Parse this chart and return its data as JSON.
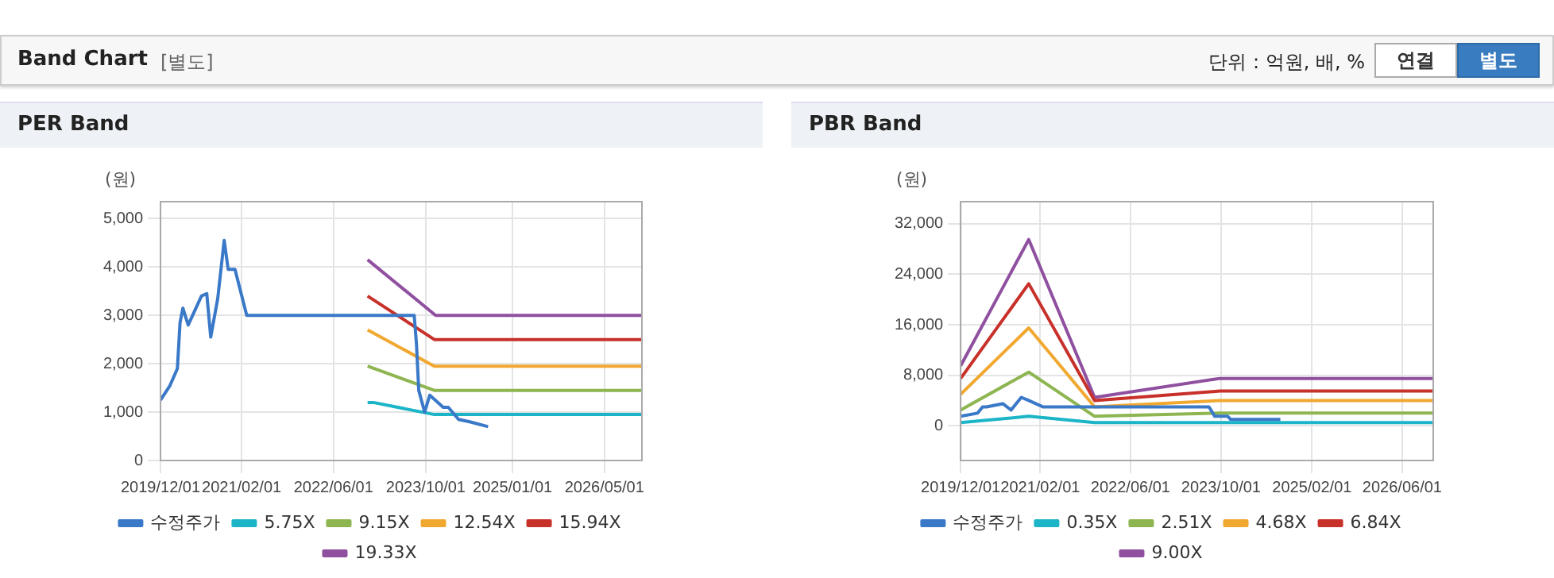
{
  "chart_data": [
    {
      "type": "other",
      "title": "Band Chart",
      "annotations": [
        "[별도]",
        "단위 : 억원, 배, %",
        "연결",
        "별도"
      ]
    },
    {
      "type": "line",
      "title": "PER Band",
      "ylabel": "(원)",
      "legend": "bottom",
      "grid": true,
      "marker": "none",
      "line_style": "solid",
      "xlim": [
        "2019-12-01",
        "2026-11-15"
      ],
      "ylim": [
        0,
        5350
      ],
      "yticks": [
        0,
        {
          "value": 1000,
          "label": "1,000"
        },
        {
          "value": 2000,
          "label": "2,000"
        },
        {
          "value": 3000,
          "label": "3,000"
        },
        {
          "value": 4000,
          "label": "4,000"
        },
        {
          "value": 5000,
          "label": "5,000"
        }
      ],
      "xticks": [
        {
          "value": "2019-12-01",
          "label": "2019/12/01"
        },
        {
          "value": "2021-02-01",
          "label": "2021/02/01"
        },
        {
          "value": "2022-06-01",
          "label": "2022/06/01"
        },
        {
          "value": "2023-10-01",
          "label": "2023/10/01"
        },
        {
          "value": "2025-01-01",
          "label": "2025/01/01"
        },
        {
          "value": "2026-05-01",
          "label": "2026/05/01"
        }
      ],
      "series": [
        {
          "name": "수정주가",
          "color": "#3a78c8",
          "x": [
            "2019-12-01",
            "2020-01-20",
            "2020-02-28",
            "2020-03-13",
            "2020-03-28",
            "2020-04-25",
            "2020-07-04",
            "2020-08-01",
            "2020-08-22",
            "2020-09-28",
            "2020-11-01",
            "2020-11-22",
            "2020-12-28",
            "2021-02-28",
            "2023-08-01",
            "2023-08-13",
            "2023-08-25",
            "2023-09-25",
            "2023-10-22",
            "2024-01-01",
            "2024-01-28",
            "2024-03-22",
            "2024-05-20",
            "2024-08-25"
          ],
          "values": [
            1250,
            1550,
            1900,
            2850,
            3150,
            2800,
            3400,
            3450,
            2550,
            3350,
            4550,
            3950,
            3950,
            3000,
            3000,
            2400,
            1450,
            1000,
            1350,
            1100,
            1100,
            850,
            800,
            700
          ]
        },
        {
          "name": "5.75X",
          "color": "#1cb5c8",
          "x": [
            "2022-11-28",
            "2022-12-28",
            "2023-11-15",
            "2026-11-15"
          ],
          "values": [
            1200,
            1200,
            950,
            950
          ]
        },
        {
          "name": "9.15X",
          "color": "#8db550",
          "x": [
            "2022-11-28",
            "2023-11-15",
            "2026-11-15"
          ],
          "values": [
            1950,
            1450,
            1450
          ]
        },
        {
          "name": "12.54X",
          "color": "#f0a830",
          "x": [
            "2022-11-28",
            "2023-11-15",
            "2026-11-15"
          ],
          "values": [
            2700,
            1950,
            1950
          ]
        },
        {
          "name": "15.94X",
          "color": "#c8302a",
          "x": [
            "2022-11-28",
            "2023-11-15",
            "2026-11-15"
          ],
          "values": [
            3400,
            2500,
            2500
          ]
        },
        {
          "name": "19.33X",
          "color": "#9050a0",
          "x": [
            "2022-11-28",
            "2023-11-22",
            "2026-11-15"
          ],
          "values": [
            4150,
            3000,
            3000
          ]
        }
      ]
    },
    {
      "type": "line",
      "title": "PBR Band",
      "ylabel": "(원)",
      "legend": "bottom",
      "grid": true,
      "marker": "none",
      "line_style": "solid",
      "xlim": [
        "2019-12-01",
        "2026-11-15"
      ],
      "ylim": [
        -5500,
        35500
      ],
      "yticks": [
        0,
        {
          "value": 8000,
          "label": "8,000"
        },
        {
          "value": 16000,
          "label": "16,000"
        },
        {
          "value": 24000,
          "label": "24,000"
        },
        {
          "value": 32000,
          "label": "32,000"
        }
      ],
      "xticks": [
        {
          "value": "2019-12-01",
          "label": "2019/12/01"
        },
        {
          "value": "2021-02-01",
          "label": "2021/02/01"
        },
        {
          "value": "2022-06-01",
          "label": "2022/06/01"
        },
        {
          "value": "2023-10-01",
          "label": "2023/10/01"
        },
        {
          "value": "2025-02-01",
          "label": "2025/02/01"
        },
        {
          "value": "2026-06-01",
          "label": "2026/06/01"
        }
      ],
      "series": [
        {
          "name": "수정주가",
          "color": "#3a78c8",
          "x": [
            "2019-12-01",
            "2020-03-01",
            "2020-03-28",
            "2020-04-18",
            "2020-07-15",
            "2020-08-28",
            "2020-10-22",
            "2020-12-01",
            "2021-02-15",
            "2023-07-28",
            "2023-08-28",
            "2023-11-06",
            "2023-11-22",
            "2024-04-10",
            "2024-05-10",
            "2024-08-15"
          ],
          "values": [
            1500,
            2000,
            3000,
            3000,
            3500,
            2500,
            4500,
            4000,
            3000,
            3000,
            1500,
            1500,
            1000,
            1000,
            1000,
            1000
          ]
        },
        {
          "name": "0.35X",
          "color": "#1cb5c8",
          "x": [
            "2019-12-01",
            "2020-12-01",
            "2021-11-20",
            "2026-11-15"
          ],
          "values": [
            500,
            1500,
            500,
            500
          ]
        },
        {
          "name": "2.51X",
          "color": "#8db550",
          "x": [
            "2019-12-01",
            "2020-12-01",
            "2021-11-20",
            "2023-09-25",
            "2026-11-15"
          ],
          "values": [
            2500,
            8500,
            1500,
            2000,
            2000
          ]
        },
        {
          "name": "4.68X",
          "color": "#f0a830",
          "x": [
            "2019-12-01",
            "2020-12-01",
            "2021-11-20",
            "2023-09-25",
            "2026-11-15"
          ],
          "values": [
            5000,
            15500,
            3000,
            4000,
            4000
          ]
        },
        {
          "name": "6.84X",
          "color": "#c8302a",
          "x": [
            "2019-12-01",
            "2020-12-01",
            "2021-11-20",
            "2023-09-25",
            "2026-11-15"
          ],
          "values": [
            7500,
            22500,
            4000,
            5500,
            5500
          ]
        },
        {
          "name": "9.00X",
          "color": "#9050a0",
          "x": [
            "2019-12-01",
            "2020-12-01",
            "2021-11-20",
            "2023-09-25",
            "2026-11-15"
          ],
          "values": [
            9500,
            29500,
            4500,
            7500,
            7500
          ]
        }
      ]
    }
  ]
}
